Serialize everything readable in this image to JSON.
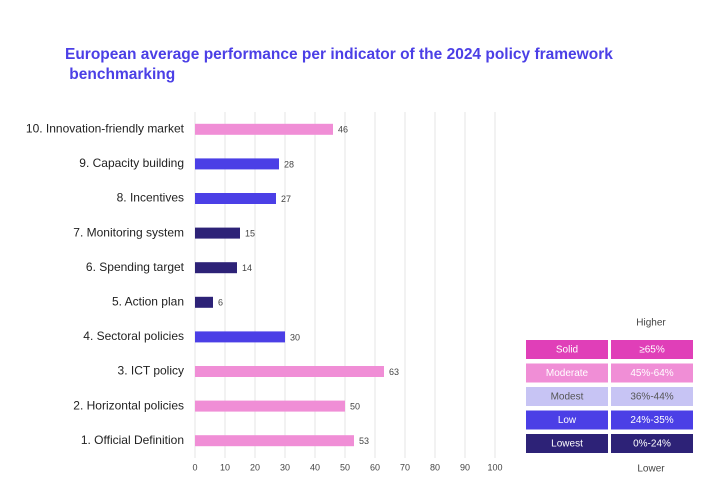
{
  "chart_data": {
    "type": "bar",
    "orientation": "horizontal",
    "title": "European average performance per indicator of the 2024 policy framework benchmarking",
    "categories": [
      "10. Innovation-friendly market",
      "9. Capacity building",
      "8. Incentives",
      "7. Monitoring system",
      "6. Spending target",
      "5. Action plan",
      "4. Sectoral policies",
      "3. ICT policy",
      "2. Horizontal policies",
      "1. Official Definition"
    ],
    "values": [
      46,
      28,
      27,
      15,
      14,
      6,
      30,
      63,
      50,
      53
    ],
    "colors": [
      "#f08ed6",
      "#4b3fe6",
      "#4b3fe6",
      "#2d2277",
      "#2d2277",
      "#2d2277",
      "#4b3fe6",
      "#f08ed6",
      "#f08ed6",
      "#f08ed6"
    ],
    "xlim": [
      0,
      100
    ],
    "xticks": [
      0,
      10,
      20,
      30,
      40,
      50,
      60,
      70,
      80,
      90,
      100
    ],
    "grid": true,
    "legend": {
      "top_label": "Higher",
      "bottom_label": "Lower",
      "items": [
        {
          "name": "Solid",
          "range": "≥65%",
          "color": "#e03fb8",
          "text_color": "#ffffff"
        },
        {
          "name": "Moderate",
          "range": "45%-64%",
          "color": "#f08ed6",
          "text_color": "#ffffff"
        },
        {
          "name": "Modest",
          "range": "36%-44%",
          "color": "#c7c4f4",
          "text_color": "#555555"
        },
        {
          "name": "Low",
          "range": "24%-35%",
          "color": "#4b3fe6",
          "text_color": "#ffffff"
        },
        {
          "name": "Lowest",
          "range": "0%-24%",
          "color": "#2d2277",
          "text_color": "#ffffff"
        }
      ]
    }
  }
}
